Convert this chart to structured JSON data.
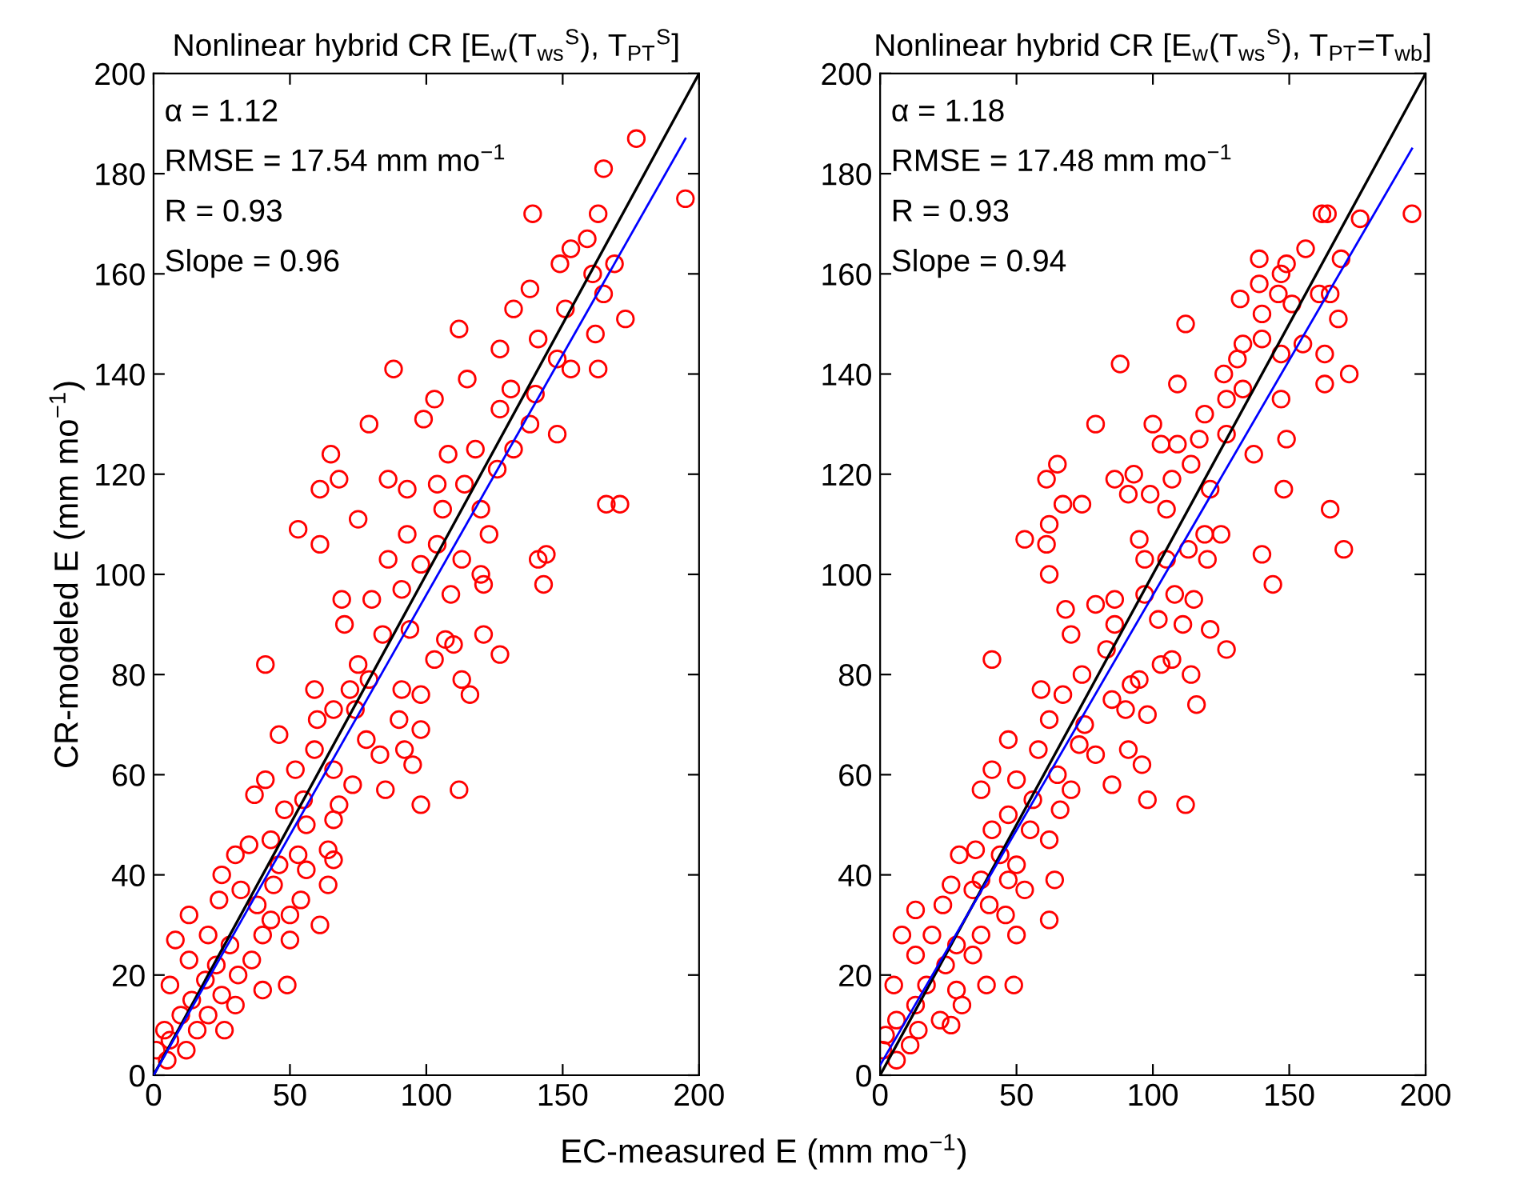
{
  "chart_data": [
    {
      "type": "scatter",
      "title": "Nonlinear hybrid CR [E$_{w}$(T$_{ws}$$^{S}$), T$_{PT}$$^{S}$]",
      "xlabel": "EC-measured E (mm mo$^{−1}$)",
      "ylabel": "CR-modeled E (mm mo$^{−1}$)",
      "xlim": [
        0,
        200
      ],
      "ylim": [
        0,
        200
      ],
      "xticks": [
        0,
        50,
        100,
        150,
        200
      ],
      "yticks": [
        0,
        20,
        40,
        60,
        80,
        100,
        120,
        140,
        160,
        180,
        200
      ],
      "annotations": [
        "α = 1.12",
        "RMSE = 17.54 mm mo$^{−1}$",
        "R = 0.93",
        "Slope = 0.96"
      ],
      "series": [
        {
          "marker": "circle",
          "color": "#ff0000",
          "x": [
            177,
            195,
            165,
            163,
            139,
            159,
            153,
            149,
            169,
            138,
            161,
            132,
            151,
            165,
            173,
            162,
            112,
            141,
            127,
            148,
            153,
            163,
            88,
            103,
            115,
            131,
            140,
            127,
            138,
            148,
            79,
            99,
            108,
            118,
            132,
            126,
            65,
            68,
            61,
            86,
            93,
            104,
            114,
            106,
            120,
            166,
            171,
            75,
            53,
            61,
            93,
            104,
            113,
            123,
            86,
            98,
            120,
            141,
            144,
            143,
            69,
            80,
            91,
            109,
            121,
            70,
            84,
            94,
            107,
            121,
            127,
            41,
            75,
            103,
            110,
            113,
            116,
            59,
            72,
            79,
            91,
            98,
            66,
            74,
            90,
            98,
            60,
            46,
            59,
            78,
            83,
            92,
            95,
            41,
            52,
            66,
            73,
            85,
            37,
            55,
            68,
            112,
            98,
            48,
            56,
            66,
            43,
            53,
            64,
            30,
            35,
            66,
            25,
            46,
            56,
            32,
            44,
            54,
            64,
            38,
            24,
            43,
            50,
            61,
            13,
            40,
            50,
            8,
            20,
            28,
            36,
            13,
            23,
            40,
            49,
            31,
            19,
            6,
            25,
            14,
            30,
            20,
            10,
            4,
            26,
            16,
            6,
            12,
            1,
            5
          ],
          "values": [
            187,
            175,
            181,
            172,
            172,
            167,
            165,
            162,
            162,
            157,
            160,
            153,
            153,
            156,
            151,
            148,
            149,
            147,
            145,
            143,
            141,
            141,
            141,
            135,
            139,
            137,
            136,
            133,
            130,
            128,
            130,
            131,
            124,
            125,
            125,
            121,
            124,
            119,
            117,
            119,
            117,
            118,
            118,
            113,
            113,
            114,
            114,
            111,
            109,
            106,
            108,
            106,
            103,
            108,
            103,
            102,
            100,
            103,
            104,
            98,
            95,
            95,
            97,
            96,
            98,
            90,
            88,
            89,
            87,
            88,
            84,
            82,
            82,
            83,
            86,
            79,
            76,
            77,
            77,
            79,
            77,
            76,
            73,
            73,
            71,
            69,
            71,
            68,
            65,
            67,
            64,
            65,
            62,
            59,
            61,
            61,
            58,
            57,
            56,
            55,
            54,
            57,
            54,
            53,
            50,
            51,
            47,
            44,
            45,
            44,
            46,
            43,
            40,
            42,
            41,
            37,
            38,
            35,
            38,
            34,
            35,
            31,
            32,
            30,
            32,
            28,
            27,
            27,
            28,
            26,
            23,
            23,
            22,
            17,
            18,
            20,
            19,
            18,
            16,
            15,
            14,
            12,
            12,
            9,
            9,
            9,
            7,
            5,
            5,
            3
          ]
        },
        {
          "type": "line",
          "color": "#000000",
          "x": [
            0,
            200
          ],
          "values": [
            0,
            200
          ]
        },
        {
          "type": "line",
          "color": "#0000ff",
          "x": [
            0,
            195
          ],
          "values": [
            0,
            187
          ]
        }
      ]
    },
    {
      "type": "scatter",
      "title": "Nonlinear hybrid CR [E$_{w}$(T$_{ws}$$^{S}$), T$_{PT}$=T$_{wb}$]",
      "xlim": [
        0,
        200
      ],
      "ylim": [
        0,
        200
      ],
      "xticks": [
        0,
        50,
        100,
        150,
        200
      ],
      "yticks": [
        0,
        20,
        40,
        60,
        80,
        100,
        120,
        140,
        160,
        180,
        200
      ],
      "annotations": [
        "α = 1.18",
        "RMSE = 17.48 mm mo$^{−1}$",
        "R = 0.93",
        "Slope = 0.94"
      ],
      "series": [
        {
          "marker": "circle",
          "color": "#ff0000",
          "x": [
            195,
            176,
            164,
            162,
            139,
            156,
            169,
            149,
            147,
            139,
            132,
            146,
            161,
            165,
            151,
            140,
            168,
            112,
            133,
            140,
            147,
            155,
            163,
            126,
            131,
            172,
            163,
            88,
            109,
            147,
            127,
            133,
            119,
            100,
            79,
            103,
            109,
            117,
            127,
            137,
            149,
            65,
            61,
            67,
            74,
            86,
            93,
            91,
            99,
            107,
            105,
            114,
            121,
            148,
            165,
            170,
            53,
            62,
            61,
            95,
            105,
            119,
            125,
            113,
            97,
            120,
            140,
            144,
            62,
            79,
            86,
            97,
            108,
            115,
            68,
            86,
            102,
            111,
            121,
            127,
            70,
            41,
            74,
            83,
            103,
            107,
            114,
            92,
            95,
            59,
            67,
            85,
            116,
            90,
            98,
            62,
            75,
            47,
            58,
            73,
            79,
            91,
            96,
            41,
            50,
            65,
            70,
            85,
            37,
            56,
            66,
            98,
            112,
            47,
            41,
            55,
            62,
            35,
            29,
            44,
            50,
            26,
            37,
            47,
            64,
            34,
            53,
            40,
            13,
            23,
            46,
            62,
            19,
            37,
            50,
            8,
            28,
            13,
            34,
            24,
            39,
            49,
            5,
            17,
            28,
            30,
            13,
            22,
            26,
            6,
            14,
            2,
            11,
            1,
            6
          ],
          "values": [
            172,
            171,
            172,
            172,
            163,
            165,
            163,
            162,
            160,
            158,
            155,
            156,
            156,
            156,
            154,
            152,
            151,
            150,
            146,
            147,
            144,
            146,
            144,
            140,
            143,
            140,
            138,
            142,
            138,
            135,
            135,
            137,
            132,
            130,
            130,
            126,
            126,
            127,
            128,
            124,
            127,
            122,
            119,
            114,
            114,
            119,
            120,
            116,
            116,
            119,
            113,
            122,
            117,
            117,
            113,
            105,
            107,
            110,
            106,
            107,
            103,
            108,
            108,
            105,
            103,
            103,
            104,
            98,
            100,
            94,
            95,
            96,
            96,
            95,
            93,
            90,
            91,
            90,
            89,
            85,
            88,
            83,
            80,
            85,
            82,
            83,
            80,
            78,
            79,
            77,
            76,
            75,
            74,
            73,
            72,
            71,
            70,
            67,
            65,
            66,
            64,
            65,
            62,
            61,
            59,
            60,
            57,
            58,
            57,
            55,
            53,
            55,
            54,
            52,
            49,
            49,
            47,
            45,
            44,
            44,
            42,
            38,
            39,
            39,
            39,
            37,
            37,
            34,
            33,
            34,
            32,
            31,
            28,
            28,
            28,
            28,
            26,
            24,
            24,
            22,
            18,
            18,
            18,
            18,
            17,
            14,
            14,
            11,
            10,
            11,
            9,
            8,
            6,
            5,
            3
          ]
        },
        {
          "type": "line",
          "color": "#000000",
          "x": [
            0,
            200
          ],
          "values": [
            0,
            200
          ]
        },
        {
          "type": "line",
          "color": "#0000ff",
          "x": [
            0,
            195
          ],
          "values": [
            2,
            185
          ]
        }
      ]
    }
  ]
}
